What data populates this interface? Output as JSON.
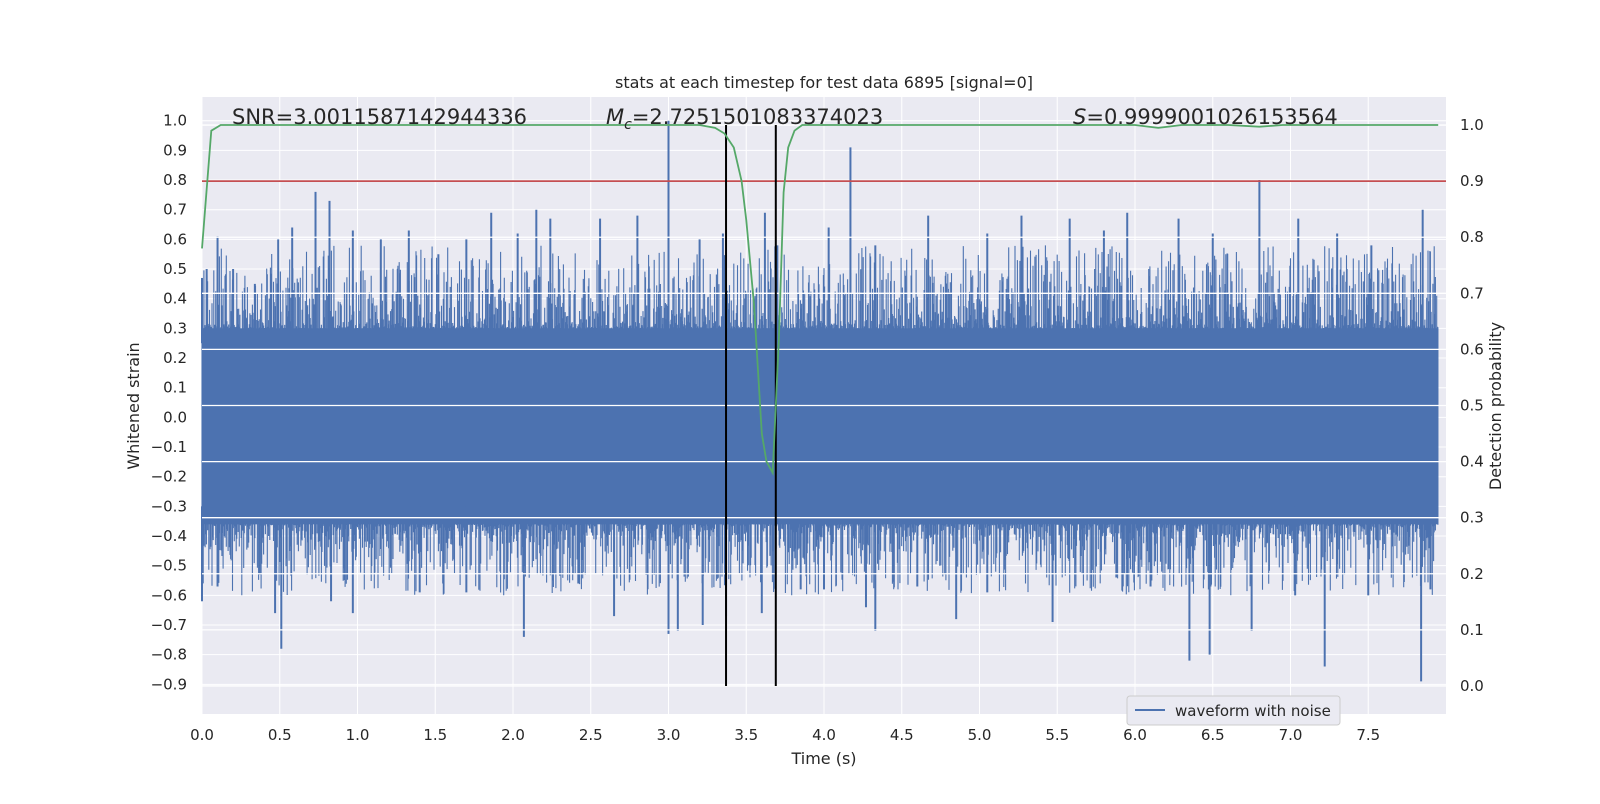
{
  "chart_data": {
    "type": "line",
    "title": "stats at each timestep for test data 6895 [signal=0]",
    "xlabel": "Time (s)",
    "ylabel": "Whitened strain",
    "y2label": "Detection probability",
    "xlim": [
      0.0,
      8.0
    ],
    "ylim": [
      -1.0,
      1.08
    ],
    "y2lim": [
      -0.05,
      1.05
    ],
    "xticks": [
      "0.0",
      "0.5",
      "1.0",
      "1.5",
      "2.0",
      "2.5",
      "3.0",
      "3.5",
      "4.0",
      "4.5",
      "5.0",
      "5.5",
      "6.0",
      "6.5",
      "7.0",
      "7.5"
    ],
    "yticks": [
      "−0.9",
      "−0.8",
      "−0.7",
      "−0.6",
      "−0.5",
      "−0.4",
      "−0.3",
      "−0.2",
      "−0.1",
      "0.0",
      "0.1",
      "0.2",
      "0.3",
      "0.4",
      "0.5",
      "0.6",
      "0.7",
      "0.8",
      "0.9",
      "1.0"
    ],
    "y2ticks": [
      "0.0",
      "0.1",
      "0.2",
      "0.3",
      "0.4",
      "0.5",
      "0.6",
      "0.7",
      "0.8",
      "0.9",
      "1.0"
    ],
    "grid": true,
    "legend": {
      "position": "lower-right",
      "entries": [
        "waveform with noise"
      ]
    },
    "annotations": {
      "snr": "SNR=3.0011587142944336",
      "mc_symbol": "M",
      "mc_sub": "c",
      "mc_value": "=2.7251501083374023",
      "s_symbol": "S",
      "s_value": "=0.9999001026153564"
    },
    "waveform": {
      "name": "waveform with noise",
      "color": "#4c72b0",
      "sample_rate_hz": 2048,
      "band_max": 0.3,
      "band_min": -0.36,
      "spikes_up": [
        [
          0.0,
          0.47
        ],
        [
          0.03,
          0.5
        ],
        [
          0.1,
          0.61
        ],
        [
          0.2,
          0.5
        ],
        [
          0.34,
          0.45
        ],
        [
          0.49,
          0.6
        ],
        [
          0.58,
          0.64
        ],
        [
          0.73,
          0.76
        ],
        [
          0.82,
          0.73
        ],
        [
          0.97,
          0.63
        ],
        [
          1.15,
          0.6
        ],
        [
          1.33,
          0.63
        ],
        [
          1.52,
          0.55
        ],
        [
          1.7,
          0.6
        ],
        [
          1.86,
          0.69
        ],
        [
          2.03,
          0.62
        ],
        [
          2.15,
          0.7
        ],
        [
          2.24,
          0.67
        ],
        [
          2.56,
          0.67
        ],
        [
          2.8,
          0.68
        ],
        [
          3.0,
          1.0
        ],
        [
          3.2,
          0.6
        ],
        [
          3.35,
          0.62
        ],
        [
          3.62,
          0.69
        ],
        [
          3.7,
          0.58
        ],
        [
          4.03,
          0.64
        ],
        [
          4.17,
          0.91
        ],
        [
          4.33,
          0.58
        ],
        [
          4.67,
          0.68
        ],
        [
          5.05,
          0.62
        ],
        [
          5.27,
          0.68
        ],
        [
          5.58,
          0.67
        ],
        [
          5.8,
          0.63
        ],
        [
          5.95,
          0.69
        ],
        [
          6.28,
          0.67
        ],
        [
          6.5,
          0.62
        ],
        [
          6.8,
          0.8
        ],
        [
          7.05,
          0.67
        ],
        [
          7.3,
          0.62
        ],
        [
          7.52,
          0.58
        ],
        [
          7.85,
          0.7
        ]
      ],
      "spikes_down": [
        [
          0.0,
          -0.62
        ],
        [
          0.1,
          -0.57
        ],
        [
          0.37,
          -0.53
        ],
        [
          0.47,
          -0.66
        ],
        [
          0.51,
          -0.78
        ],
        [
          0.83,
          -0.62
        ],
        [
          0.97,
          -0.66
        ],
        [
          1.4,
          -0.59
        ],
        [
          1.7,
          -0.59
        ],
        [
          2.07,
          -0.74
        ],
        [
          2.42,
          -0.56
        ],
        [
          2.65,
          -0.67
        ],
        [
          3.0,
          -0.73
        ],
        [
          3.06,
          -0.72
        ],
        [
          3.22,
          -0.7
        ],
        [
          3.37,
          -0.67
        ],
        [
          3.6,
          -0.66
        ],
        [
          3.85,
          -0.58
        ],
        [
          4.0,
          -0.58
        ],
        [
          4.27,
          -0.64
        ],
        [
          4.33,
          -0.72
        ],
        [
          4.6,
          -0.57
        ],
        [
          4.85,
          -0.68
        ],
        [
          5.05,
          -0.59
        ],
        [
          5.47,
          -0.69
        ],
        [
          5.88,
          -0.54
        ],
        [
          6.1,
          -0.57
        ],
        [
          6.35,
          -0.82
        ],
        [
          6.48,
          -0.8
        ],
        [
          6.75,
          -0.72
        ],
        [
          7.03,
          -0.6
        ],
        [
          7.22,
          -0.84
        ],
        [
          7.5,
          -0.6
        ],
        [
          7.84,
          -0.89
        ],
        [
          7.9,
          -0.58
        ]
      ]
    },
    "probability": {
      "color": "#55a868",
      "x": [
        0.0,
        0.06,
        0.12,
        0.5,
        1.0,
        2.0,
        3.0,
        3.2,
        3.3,
        3.36,
        3.42,
        3.47,
        3.5,
        3.55,
        3.6,
        3.63,
        3.67,
        3.71,
        3.74,
        3.77,
        3.81,
        3.86,
        4.0,
        5.0,
        6.0,
        6.15,
        6.3,
        6.6,
        6.8,
        6.95,
        7.2,
        7.5,
        7.95
      ],
      "y": [
        0.78,
        0.99,
        1.0,
        1.0,
        1.0,
        1.0,
        1.0,
        1.0,
        0.995,
        0.985,
        0.96,
        0.9,
        0.83,
        0.68,
        0.45,
        0.4,
        0.38,
        0.62,
        0.88,
        0.96,
        0.99,
        1.0,
        1.0,
        1.0,
        1.0,
        0.995,
        1.0,
        1.0,
        0.997,
        1.0,
        1.0,
        1.0,
        1.0
      ]
    },
    "threshold": {
      "y2": 0.9,
      "color": "#c44e52"
    },
    "vertical_lines": {
      "x": [
        3.37,
        3.69
      ],
      "color": "#000000"
    }
  }
}
